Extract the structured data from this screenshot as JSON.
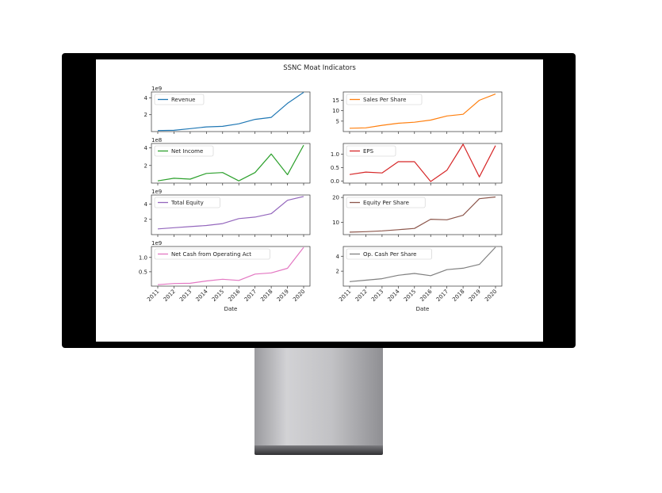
{
  "figure": {
    "title": "SSNC Moat Indicators"
  },
  "chart_data": {
    "type": "line",
    "title": "SSNC Moat Indicators",
    "x": [
      2011,
      2012,
      2013,
      2014,
      2015,
      2016,
      2017,
      2018,
      2019,
      2020
    ],
    "x_tick_labels": [
      "2011",
      "2012",
      "2013",
      "2014",
      "2015",
      "2016",
      "2017",
      "2018",
      "2019",
      "2020"
    ],
    "xlabel": "Date",
    "grid": false,
    "legend_position": "upper left",
    "panels": [
      {
        "series": "Revenue",
        "color": "#1f77b4",
        "offset_text": "1e9",
        "ylim": [
          0,
          4.7
        ],
        "yticks": [
          2,
          4
        ],
        "ytick_labels": [
          "2",
          "4"
        ],
        "values": [
          0.12,
          0.15,
          0.35,
          0.55,
          0.62,
          0.92,
          1.45,
          1.68,
          3.35,
          4.65
        ]
      },
      {
        "series": "Sales Per Share",
        "color": "#ff7f0e",
        "offset_text": "",
        "ylim": [
          0,
          19
        ],
        "yticks": [
          5,
          10,
          15
        ],
        "ytick_labels": [
          "5",
          "10",
          "15"
        ],
        "values": [
          1.6,
          1.8,
          3.0,
          4.0,
          4.5,
          5.5,
          7.5,
          8.3,
          15.0,
          18.0
        ]
      },
      {
        "series": "Net Income",
        "color": "#2ca02c",
        "offset_text": "1e8",
        "ylim": [
          0,
          4.5
        ],
        "yticks": [
          2,
          4
        ],
        "ytick_labels": [
          "2",
          "4"
        ],
        "values": [
          0.25,
          0.55,
          0.45,
          1.1,
          1.2,
          0.25,
          1.2,
          3.3,
          0.95,
          4.3
        ]
      },
      {
        "series": "EPS",
        "color": "#d62728",
        "offset_text": "",
        "ylim": [
          -0.08,
          1.4
        ],
        "yticks": [
          0.0,
          0.5,
          1.0
        ],
        "ytick_labels": [
          "0.0",
          "0.5",
          "1.0"
        ],
        "values": [
          0.24,
          0.33,
          0.3,
          0.72,
          0.72,
          -0.02,
          0.4,
          1.37,
          0.15,
          1.32
        ]
      },
      {
        "series": "Total Equity",
        "color": "#9467bd",
        "offset_text": "1e9",
        "ylim": [
          0,
          5.2
        ],
        "yticks": [
          2,
          4
        ],
        "ytick_labels": [
          "2",
          "4"
        ],
        "values": [
          0.75,
          0.9,
          1.05,
          1.2,
          1.45,
          2.1,
          2.3,
          2.75,
          4.5,
          5.0
        ]
      },
      {
        "series": "Equity Per Share",
        "color": "#8c564b",
        "offset_text": "",
        "ylim": [
          5,
          21
        ],
        "yticks": [
          10,
          20
        ],
        "ytick_labels": [
          "10",
          "20"
        ],
        "values": [
          6.0,
          6.2,
          6.5,
          7.0,
          7.5,
          11.2,
          11.0,
          12.8,
          19.5,
          20.2
        ]
      },
      {
        "series": "Net Cash from Operating Act",
        "color": "#e377c2",
        "offset_text": "1e9",
        "ylim": [
          0,
          1.38
        ],
        "yticks": [
          0.5,
          1.0
        ],
        "ytick_labels": [
          "0.5",
          "1.0"
        ],
        "values": [
          0.05,
          0.09,
          0.1,
          0.18,
          0.24,
          0.2,
          0.42,
          0.46,
          0.62,
          1.35
        ]
      },
      {
        "series": "Op. Cash Per Share",
        "color": "#7f7f7f",
        "offset_text": "",
        "ylim": [
          0,
          5.3
        ],
        "yticks": [
          2,
          4
        ],
        "ytick_labels": [
          "2",
          "4"
        ],
        "values": [
          0.6,
          0.8,
          1.0,
          1.45,
          1.7,
          1.4,
          2.2,
          2.4,
          2.9,
          5.2
        ]
      }
    ]
  }
}
